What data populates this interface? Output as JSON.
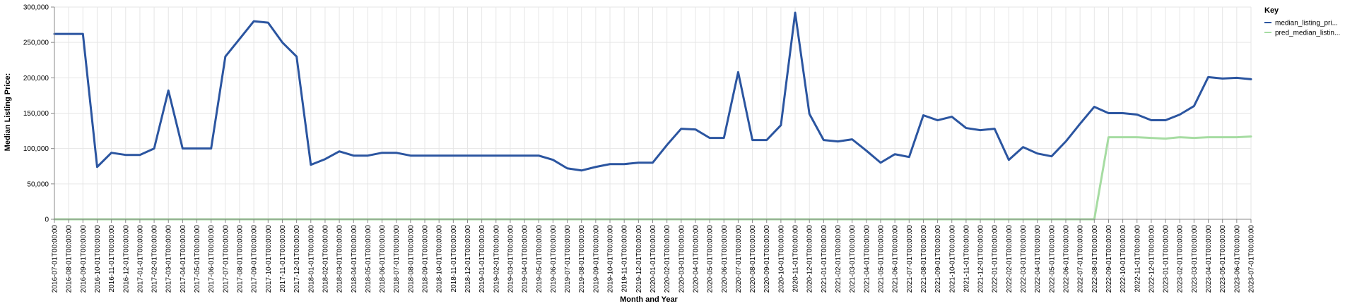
{
  "chart_data": {
    "type": "line",
    "xlabel": "Month and Year",
    "ylabel": "Median Listing Price:",
    "ylim": [
      0,
      300000
    ],
    "yticks": [
      "0",
      "50,000",
      "100,000",
      "150,000",
      "200,000",
      "250,000",
      "300,000"
    ],
    "ytick_values": [
      0,
      50000,
      100000,
      150000,
      200000,
      250000,
      300000
    ],
    "grid": true,
    "legend": {
      "title": "Key",
      "position": "top-right"
    },
    "x": [
      "2016-07-01T00:00:00",
      "2016-08-01T00:00:00",
      "2016-09-01T00:00:00",
      "2016-10-01T00:00:00",
      "2016-11-01T00:00:00",
      "2016-12-01T00:00:00",
      "2017-01-01T00:00:00",
      "2017-02-01T00:00:00",
      "2017-03-01T00:00:00",
      "2017-04-01T00:00:00",
      "2017-05-01T00:00:00",
      "2017-06-01T00:00:00",
      "2017-07-01T00:00:00",
      "2017-08-01T00:00:00",
      "2017-09-01T00:00:00",
      "2017-10-01T00:00:00",
      "2017-11-01T00:00:00",
      "2017-12-01T00:00:00",
      "2018-01-01T00:00:00",
      "2018-02-01T00:00:00",
      "2018-03-01T00:00:00",
      "2018-04-01T00:00:00",
      "2018-05-01T00:00:00",
      "2018-06-01T00:00:00",
      "2018-07-01T00:00:00",
      "2018-08-01T00:00:00",
      "2018-09-01T00:00:00",
      "2018-10-01T00:00:00",
      "2018-11-01T00:00:00",
      "2018-12-01T00:00:00",
      "2019-01-01T00:00:00",
      "2019-02-01T00:00:00",
      "2019-03-01T00:00:00",
      "2019-04-01T00:00:00",
      "2019-05-01T00:00:00",
      "2019-06-01T00:00:00",
      "2019-07-01T00:00:00",
      "2019-08-01T00:00:00",
      "2019-09-01T00:00:00",
      "2019-10-01T00:00:00",
      "2019-11-01T00:00:00",
      "2019-12-01T00:00:00",
      "2020-01-01T00:00:00",
      "2020-02-01T00:00:00",
      "2020-03-01T00:00:00",
      "2020-04-01T00:00:00",
      "2020-05-01T00:00:00",
      "2020-06-01T00:00:00",
      "2020-07-01T00:00:00",
      "2020-08-01T00:00:00",
      "2020-09-01T00:00:00",
      "2020-10-01T00:00:00",
      "2020-11-01T00:00:00",
      "2020-12-01T00:00:00",
      "2021-01-01T00:00:00",
      "2021-02-01T00:00:00",
      "2021-03-01T00:00:00",
      "2021-04-01T00:00:00",
      "2021-05-01T00:00:00",
      "2021-06-01T00:00:00",
      "2021-07-01T00:00:00",
      "2021-08-01T00:00:00",
      "2021-09-01T00:00:00",
      "2021-10-01T00:00:00",
      "2021-11-01T00:00:00",
      "2021-12-01T00:00:00",
      "2022-01-01T00:00:00",
      "2022-02-01T00:00:00",
      "2022-03-01T00:00:00",
      "2022-04-01T00:00:00",
      "2022-05-01T00:00:00",
      "2022-06-01T00:00:00",
      "2022-07-01T00:00:00",
      "2022-08-01T00:00:00",
      "2022-09-01T00:00:00",
      "2022-10-01T00:00:00",
      "2022-11-01T00:00:00",
      "2022-12-01T00:00:00",
      "2023-01-01T00:00:00",
      "2023-02-01T00:00:00",
      "2023-03-01T00:00:00",
      "2023-04-01T00:00:00",
      "2023-05-01T00:00:00",
      "2023-06-01T00:00:00",
      "2023-07-01T00:00:00"
    ],
    "series": [
      {
        "name": "median_listing_pri...",
        "color": "#2b55a0",
        "values": [
          262000,
          262000,
          262000,
          74000,
          94000,
          91000,
          91000,
          100000,
          182000,
          100000,
          100000,
          100000,
          230000,
          255000,
          280000,
          278000,
          250000,
          230000,
          77000,
          85000,
          96000,
          90000,
          90000,
          94000,
          94000,
          90000,
          90000,
          90000,
          90000,
          90000,
          90000,
          90000,
          90000,
          90000,
          90000,
          84000,
          72000,
          69000,
          74000,
          78000,
          78000,
          80000,
          80000,
          105000,
          128000,
          127000,
          115000,
          115000,
          208000,
          112000,
          112000,
          133000,
          292000,
          149000,
          112000,
          110000,
          113000,
          97000,
          80000,
          92000,
          88000,
          147000,
          140000,
          145000,
          129000,
          126000,
          128000,
          84000,
          102000,
          93000,
          89000,
          110000,
          135000,
          159000,
          150000,
          150000,
          148000,
          140000,
          140000,
          148000,
          160000,
          201000,
          199000,
          200000,
          198000
        ]
      },
      {
        "name": "pred_median_listin...",
        "color": "#a6dca2",
        "values": [
          0,
          0,
          0,
          0,
          0,
          0,
          0,
          0,
          0,
          0,
          0,
          0,
          0,
          0,
          0,
          0,
          0,
          0,
          0,
          0,
          0,
          0,
          0,
          0,
          0,
          0,
          0,
          0,
          0,
          0,
          0,
          0,
          0,
          0,
          0,
          0,
          0,
          0,
          0,
          0,
          0,
          0,
          0,
          0,
          0,
          0,
          0,
          0,
          0,
          0,
          0,
          0,
          0,
          0,
          0,
          0,
          0,
          0,
          0,
          0,
          0,
          0,
          0,
          0,
          0,
          0,
          0,
          0,
          0,
          0,
          0,
          0,
          0,
          0,
          116000,
          116000,
          116000,
          115000,
          114000,
          116000,
          115000,
          116000,
          116000,
          116000,
          117000
        ]
      }
    ]
  }
}
